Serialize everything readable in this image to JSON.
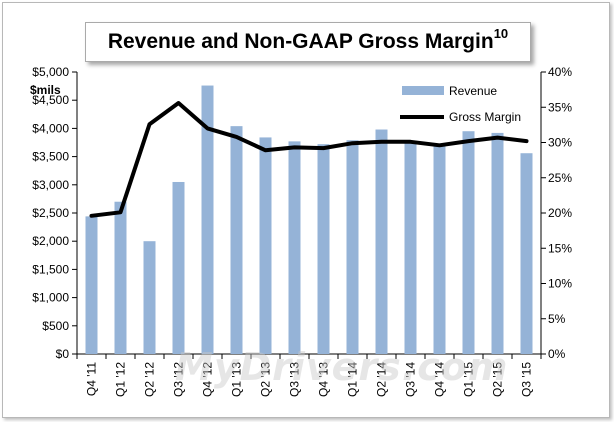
{
  "title": {
    "text": "Revenue and Non-GAAP Gross Margin",
    "superscript": "10"
  },
  "watermark": "MyDrivers.com",
  "chart_data": {
    "type": "bar",
    "title": "Revenue and Non-GAAP Gross Margin10",
    "categories": [
      "Q4 '11",
      "Q1 '12",
      "Q2 '12",
      "Q3 '12",
      "Q4 '12",
      "Q1 '13",
      "Q2 '13",
      "Q3 '13",
      "Q4 '13",
      "Q1 '14",
      "Q2 '14",
      "Q3 '14",
      "Q4 '14",
      "Q1 '15",
      "Q2 '15",
      "Q3 '15"
    ],
    "y_left": {
      "label": "$mils",
      "ylim": [
        0,
        5000
      ],
      "ticks": [
        0,
        500,
        1000,
        1500,
        2000,
        2500,
        3000,
        3500,
        4000,
        4500,
        5000
      ],
      "tick_labels": [
        "$0",
        "$500",
        "$1,000",
        "$1,500",
        "$2,000",
        "$2,500",
        "$3,000",
        "$3,500",
        "$4,000",
        "$4,500",
        "$5,000"
      ]
    },
    "y_right": {
      "label": "",
      "ylim": [
        0,
        40
      ],
      "ticks": [
        0,
        5,
        10,
        15,
        20,
        25,
        30,
        35,
        40
      ],
      "tick_labels": [
        "0%",
        "5%",
        "10%",
        "15%",
        "20%",
        "25%",
        "30%",
        "35%",
        "40%"
      ]
    },
    "series": [
      {
        "name": "Revenue",
        "type": "bar",
        "axis": "left",
        "color": "#95b3d7",
        "values": [
          2440,
          2700,
          2000,
          3050,
          4760,
          4040,
          3840,
          3770,
          3720,
          3790,
          3980,
          3750,
          3690,
          3950,
          3920,
          3560
        ]
      },
      {
        "name": "Gross Margin",
        "type": "line",
        "axis": "right",
        "color": "#000000",
        "values": [
          19.6,
          20.1,
          32.6,
          35.6,
          32.0,
          30.8,
          28.9,
          29.3,
          29.2,
          29.9,
          30.1,
          30.1,
          29.6,
          30.2,
          30.7,
          30.2
        ]
      }
    ],
    "legend": {
      "position": "top-right",
      "entries": [
        "Revenue",
        "Gross Margin"
      ]
    },
    "grid": false
  }
}
